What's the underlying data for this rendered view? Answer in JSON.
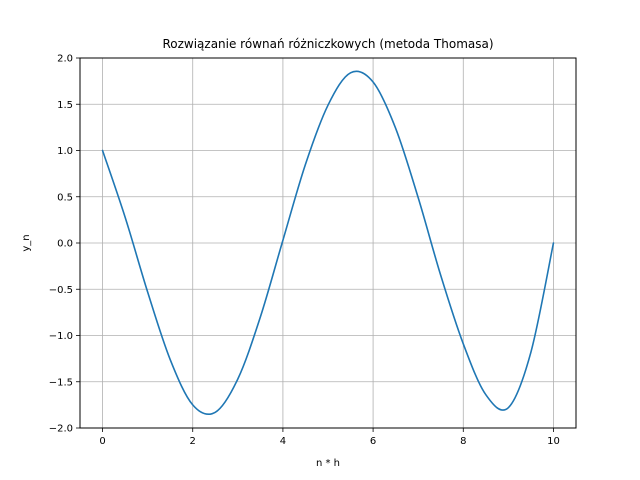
{
  "chart_data": {
    "type": "line",
    "title": "Rozwiązanie równań różniczkowych (metoda Thomasa)",
    "xlabel": "n * h",
    "ylabel": "y_n",
    "xlim": [
      -0.5,
      10.5
    ],
    "ylim": [
      -2.0,
      2.0
    ],
    "grid": true,
    "x_ticks": [
      0,
      2,
      4,
      6,
      8,
      10
    ],
    "x_tick_labels": [
      "0",
      "2",
      "4",
      "6",
      "8",
      "10"
    ],
    "y_ticks": [
      -2.0,
      -1.5,
      -1.0,
      -0.5,
      0.0,
      0.5,
      1.0,
      1.5,
      2.0
    ],
    "y_tick_labels": [
      "−2.0",
      "−1.5",
      "−1.0",
      "−0.5",
      "0.0",
      "0.5",
      "1.0",
      "1.5",
      "2.0"
    ],
    "series": [
      {
        "color": "#1f77b4",
        "x": [
          0.0,
          0.5,
          1.0,
          1.5,
          2.0,
          2.5,
          3.0,
          3.5,
          4.0,
          4.5,
          5.0,
          5.5,
          6.0,
          6.5,
          7.0,
          7.5,
          8.0,
          8.5,
          9.0,
          9.5,
          10.0
        ],
        "y": [
          1.0,
          0.28,
          -0.53,
          -1.26,
          -1.75,
          -1.83,
          -1.47,
          -0.8,
          0.03,
          0.85,
          1.49,
          1.84,
          1.74,
          1.24,
          0.49,
          -0.35,
          -1.09,
          -1.64,
          -1.78,
          -1.18,
          0.0
        ]
      }
    ]
  }
}
